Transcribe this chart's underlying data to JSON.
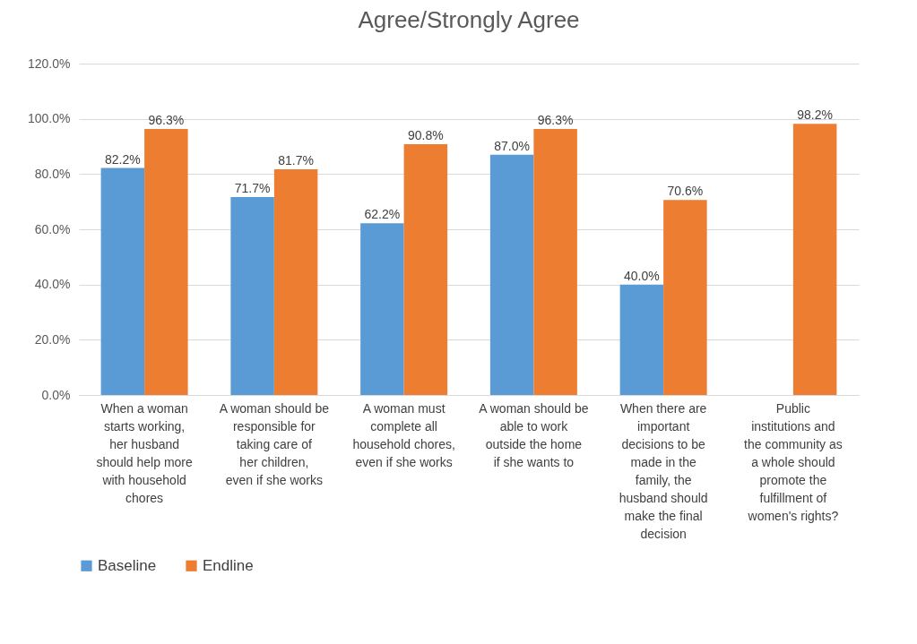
{
  "chart_data": {
    "type": "bar",
    "title": "Agree/Strongly Agree",
    "categories": [
      "When a woman starts working, her husband should help more with household chores",
      "A woman should be responsible for taking care of her children, even if she works",
      "A woman must complete all household chores, even if she works",
      "A woman should be able to work outside the home if she wants to",
      "When there are important decisions to be made in the family, the husband should make the final decision",
      "Public institutions and the community as a whole should promote the fulfillment of women's rights?"
    ],
    "series": [
      {
        "name": "Baseline",
        "color": "#5b9bd5",
        "values": [
          82.2,
          71.7,
          62.2,
          87.0,
          40.0,
          null
        ],
        "value_labels": [
          "82.2%",
          "71.7%",
          "62.2%",
          "87.0%",
          "40.0%",
          null
        ]
      },
      {
        "name": "Endline",
        "color": "#ed7d31",
        "values": [
          96.3,
          81.7,
          90.8,
          96.3,
          70.6,
          98.2
        ],
        "value_labels": [
          "96.3%",
          "81.7%",
          "90.8%",
          "96.3%",
          "70.6%",
          "98.2%"
        ]
      }
    ],
    "ylim": [
      0,
      120
    ],
    "yticks": [
      {
        "value": 0,
        "label": "0.0%"
      },
      {
        "value": 20,
        "label": "20.0%"
      },
      {
        "value": 40,
        "label": "40.0%"
      },
      {
        "value": 60,
        "label": "60.0%"
      },
      {
        "value": 80,
        "label": "80.0%"
      },
      {
        "value": 100,
        "label": "100.0%"
      },
      {
        "value": 120,
        "label": "120.0%"
      }
    ],
    "grid": "y",
    "legend": "bottom"
  }
}
